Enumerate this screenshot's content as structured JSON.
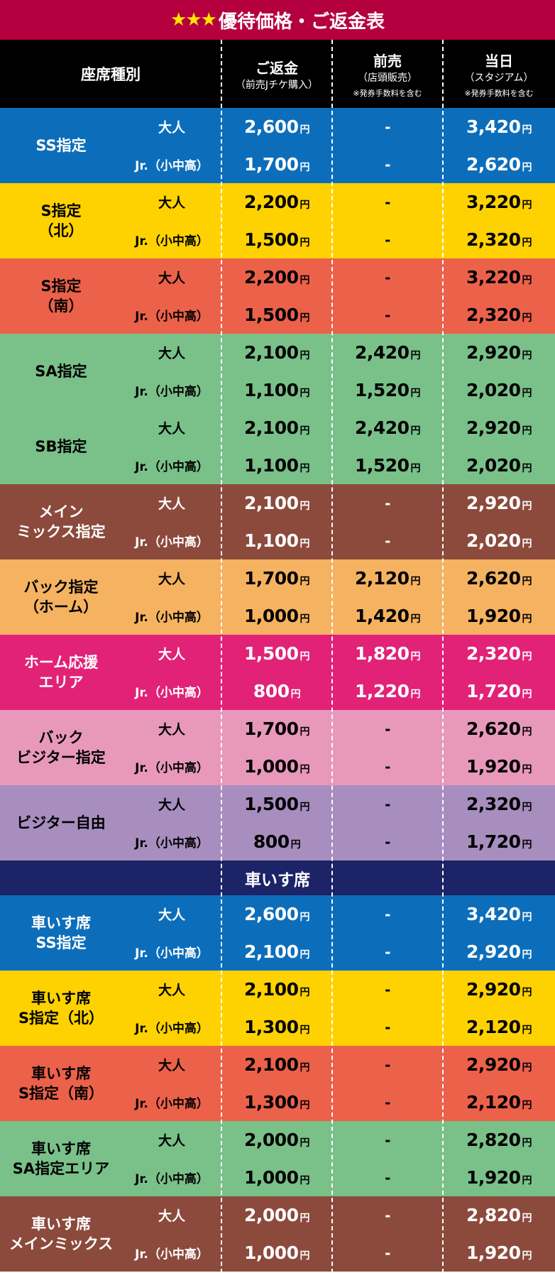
{
  "title": {
    "stars": "★★★",
    "text": "優待価格・ご返金表"
  },
  "header": {
    "seat_type": "座席種別",
    "refund": {
      "l1": "ご返金",
      "l2": "（前売Jチケ購入）"
    },
    "advance": {
      "l1": "前売",
      "l2": "（店頭販売）",
      "note": "※発券手数料を含む"
    },
    "sameday": {
      "l1": "当日",
      "l2": "（スタジアム）",
      "note": "※発券手数料を含む"
    }
  },
  "yen": "円",
  "dash": "-",
  "age_adult": "大人",
  "age_junior": "Jr.（小中高）",
  "wheelchair_section": "車いす席",
  "bands": [
    {
      "seat": "SS指定",
      "bg": "#0c6ebb",
      "color": "#ffffff",
      "rows": [
        {
          "age": "adult",
          "refund": "2,600",
          "advance": "",
          "sameday": "3,420"
        },
        {
          "age": "junior",
          "refund": "1,700",
          "advance": "",
          "sameday": "2,620"
        }
      ]
    },
    {
      "seat": "S指定\n（北）",
      "bg": "#fed200",
      "color": "#000000",
      "rows": [
        {
          "age": "adult",
          "refund": "2,200",
          "advance": "",
          "sameday": "3,220"
        },
        {
          "age": "junior",
          "refund": "1,500",
          "advance": "",
          "sameday": "2,320"
        }
      ]
    },
    {
      "seat": "S指定\n（南）",
      "bg": "#ec614a",
      "color": "#000000",
      "rows": [
        {
          "age": "adult",
          "refund": "2,200",
          "advance": "",
          "sameday": "3,220"
        },
        {
          "age": "junior",
          "refund": "1,500",
          "advance": "",
          "sameday": "2,320"
        }
      ]
    },
    {
      "seat": "SA指定",
      "bg": "#7ac089",
      "color": "#000000",
      "rows": [
        {
          "age": "adult",
          "refund": "2,100",
          "advance": "2,420",
          "sameday": "2,920"
        },
        {
          "age": "junior",
          "refund": "1,100",
          "advance": "1,520",
          "sameday": "2,020"
        }
      ]
    },
    {
      "seat": "SB指定",
      "bg": "#7ac089",
      "color": "#000000",
      "rows": [
        {
          "age": "adult",
          "refund": "2,100",
          "advance": "2,420",
          "sameday": "2,920"
        },
        {
          "age": "junior",
          "refund": "1,100",
          "advance": "1,520",
          "sameday": "2,020"
        }
      ]
    },
    {
      "seat": "メイン\nミックス指定",
      "bg": "#8c4a3c",
      "color": "#ffffff",
      "rows": [
        {
          "age": "adult",
          "refund": "2,100",
          "advance": "",
          "sameday": "2,920"
        },
        {
          "age": "junior",
          "refund": "1,100",
          "advance": "",
          "sameday": "2,020"
        }
      ]
    },
    {
      "seat": "バック指定\n（ホーム）",
      "bg": "#f5b260",
      "color": "#000000",
      "rows": [
        {
          "age": "adult",
          "refund": "1,700",
          "advance": "2,120",
          "sameday": "2,620"
        },
        {
          "age": "junior",
          "refund": "1,000",
          "advance": "1,420",
          "sameday": "1,920"
        }
      ]
    },
    {
      "seat": "ホーム応援\nエリア",
      "bg": "#e12277",
      "color": "#ffffff",
      "rows": [
        {
          "age": "adult",
          "refund": "1,500",
          "advance": "1,820",
          "sameday": "2,320"
        },
        {
          "age": "junior",
          "refund": "800",
          "advance": "1,220",
          "sameday": "1,720"
        }
      ]
    },
    {
      "seat": "バック\nビジター指定",
      "bg": "#e899bb",
      "color": "#000000",
      "rows": [
        {
          "age": "adult",
          "refund": "1,700",
          "advance": "",
          "sameday": "2,620"
        },
        {
          "age": "junior",
          "refund": "1,000",
          "advance": "",
          "sameday": "1,920"
        }
      ]
    },
    {
      "seat": "ビジター自由",
      "bg": "#a78ebe",
      "color": "#000000",
      "rows": [
        {
          "age": "adult",
          "refund": "1,500",
          "advance": "",
          "sameday": "2,320"
        },
        {
          "age": "junior",
          "refund": "800",
          "advance": "",
          "sameday": "1,720"
        }
      ]
    },
    {
      "seat": "車いす席\nSS指定",
      "bg": "#0c6ebb",
      "color": "#ffffff",
      "rows": [
        {
          "age": "adult",
          "refund": "2,600",
          "advance": "",
          "sameday": "3,420"
        },
        {
          "age": "junior",
          "refund": "2,100",
          "advance": "",
          "sameday": "2,920"
        }
      ]
    },
    {
      "seat": "車いす席\nS指定（北）",
      "bg": "#fed200",
      "color": "#000000",
      "rows": [
        {
          "age": "adult",
          "refund": "2,100",
          "advance": "",
          "sameday": "2,920"
        },
        {
          "age": "junior",
          "refund": "1,300",
          "advance": "",
          "sameday": "2,120"
        }
      ]
    },
    {
      "seat": "車いす席\nS指定（南）",
      "bg": "#ec614a",
      "color": "#000000",
      "rows": [
        {
          "age": "adult",
          "refund": "2,100",
          "advance": "",
          "sameday": "2,920"
        },
        {
          "age": "junior",
          "refund": "1,300",
          "advance": "",
          "sameday": "2,120"
        }
      ]
    },
    {
      "seat": "車いす席\nSA指定エリア",
      "bg": "#7ac089",
      "color": "#000000",
      "rows": [
        {
          "age": "adult",
          "refund": "2,000",
          "advance": "",
          "sameday": "2,820"
        },
        {
          "age": "junior",
          "refund": "1,000",
          "advance": "",
          "sameday": "1,920"
        }
      ]
    },
    {
      "seat": "車いす席\nメインミックス",
      "bg": "#8c4a3c",
      "color": "#ffffff",
      "rows": [
        {
          "age": "adult",
          "refund": "2,000",
          "advance": "",
          "sameday": "2,820"
        },
        {
          "age": "junior",
          "refund": "1,000",
          "advance": "",
          "sameday": "1,920"
        }
      ]
    }
  ]
}
